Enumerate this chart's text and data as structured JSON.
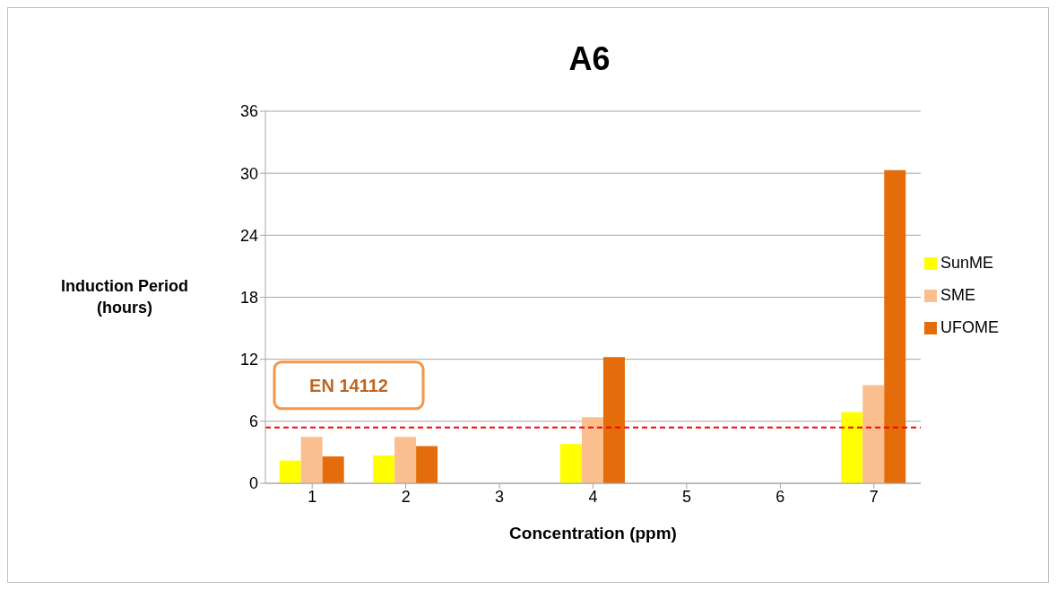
{
  "chart_data": {
    "type": "bar",
    "title": "A6",
    "xlabel": "Concentration (ppm)",
    "ylabel": "Induction Period\n(hours)",
    "categories": [
      "1",
      "2",
      "3",
      "4",
      "5",
      "6",
      "7"
    ],
    "series": [
      {
        "name": "SunME",
        "color": "#ffff00",
        "values": [
          2.2,
          2.7,
          null,
          3.8,
          null,
          null,
          6.9
        ]
      },
      {
        "name": "SME",
        "color": "#fbbf8f",
        "values": [
          4.5,
          4.5,
          null,
          6.4,
          null,
          null,
          9.5
        ]
      },
      {
        "name": "UFOME",
        "color": "#e46c0a",
        "values": [
          2.6,
          3.6,
          null,
          12.2,
          null,
          null,
          30.3
        ]
      }
    ],
    "ylim": [
      0,
      36
    ],
    "yticks": [
      0,
      6,
      12,
      18,
      24,
      30,
      36
    ],
    "grid": "y",
    "legend": "right",
    "ref_lines": [
      {
        "axis": "y",
        "value": 5.4,
        "label": "EN 14112",
        "color": "#ff0000",
        "line_style": "dashed"
      }
    ]
  }
}
